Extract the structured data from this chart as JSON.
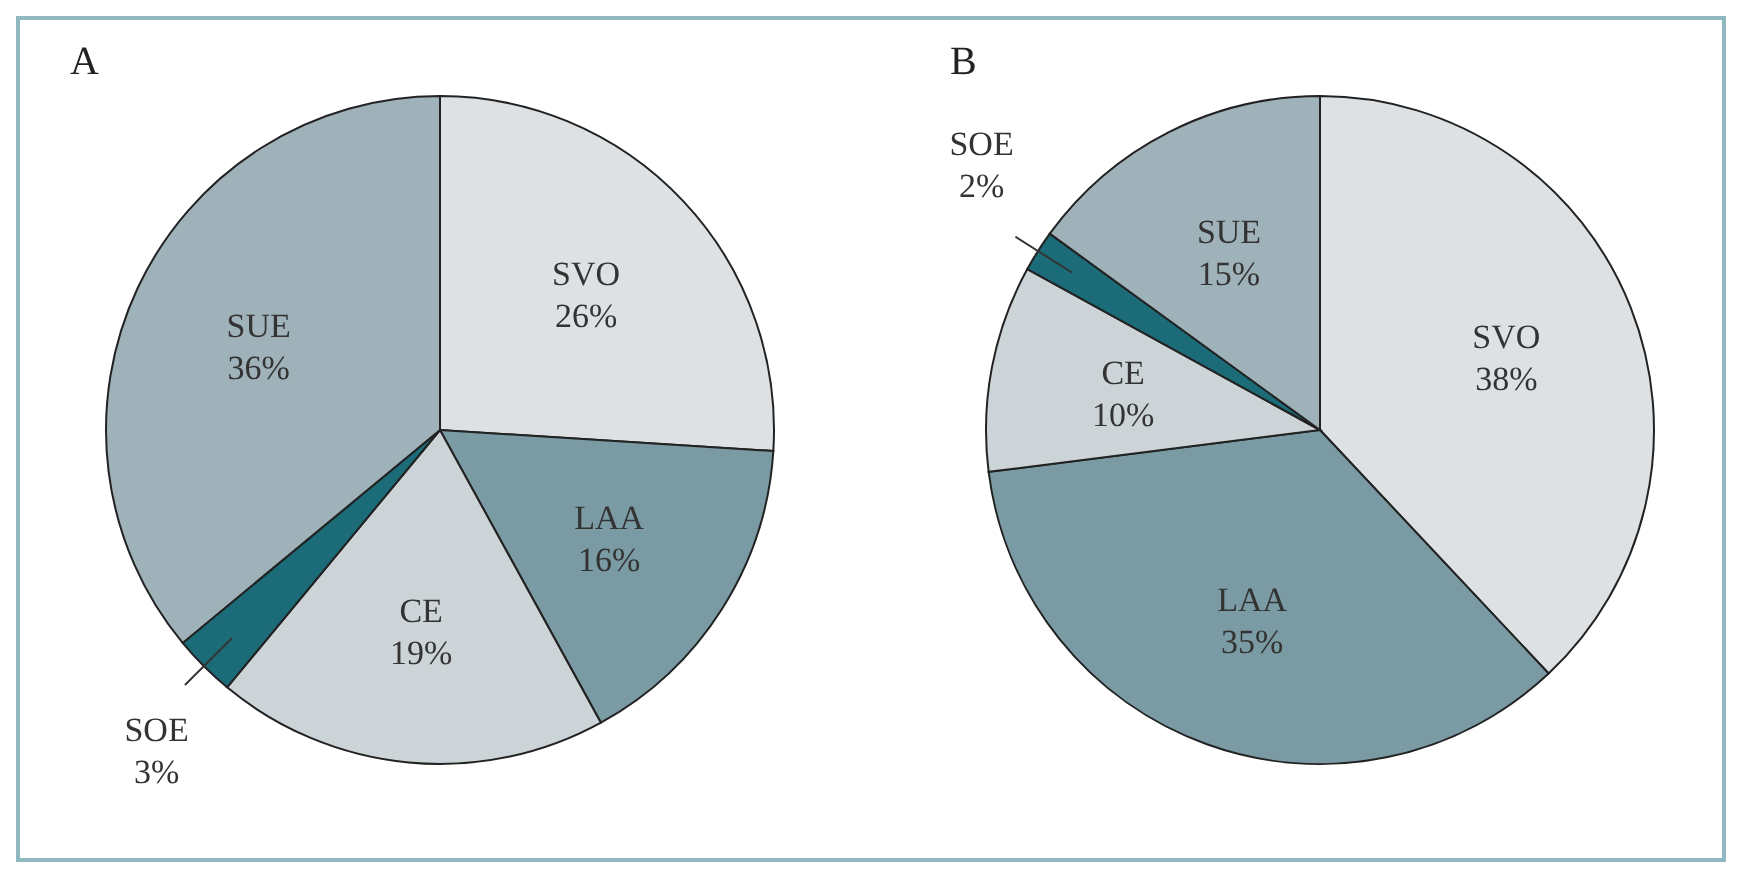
{
  "chart_data": [
    {
      "type": "pie",
      "title": "A",
      "categories": [
        "SVO",
        "LAA",
        "CE",
        "SOE",
        "SUE"
      ],
      "values": [
        26,
        16,
        19,
        3,
        36
      ],
      "value_labels": [
        "26%",
        "16%",
        "19%",
        "3%",
        "36%"
      ],
      "colors": [
        "#dde1e4",
        "#7b9ba4",
        "#cdd4d7",
        "#1b6c78",
        "#9fb1b9"
      ]
    },
    {
      "type": "pie",
      "title": "B",
      "categories": [
        "SVO",
        "LAA",
        "CE",
        "SOE",
        "SUE"
      ],
      "values": [
        38,
        35,
        10,
        2,
        15
      ],
      "value_labels": [
        "38%",
        "35%",
        "10%",
        "2%",
        "15%"
      ],
      "colors": [
        "#dde1e4",
        "#7b9ba4",
        "#cdd4d7",
        "#1b6c78",
        "#9fb1b9"
      ]
    }
  ]
}
